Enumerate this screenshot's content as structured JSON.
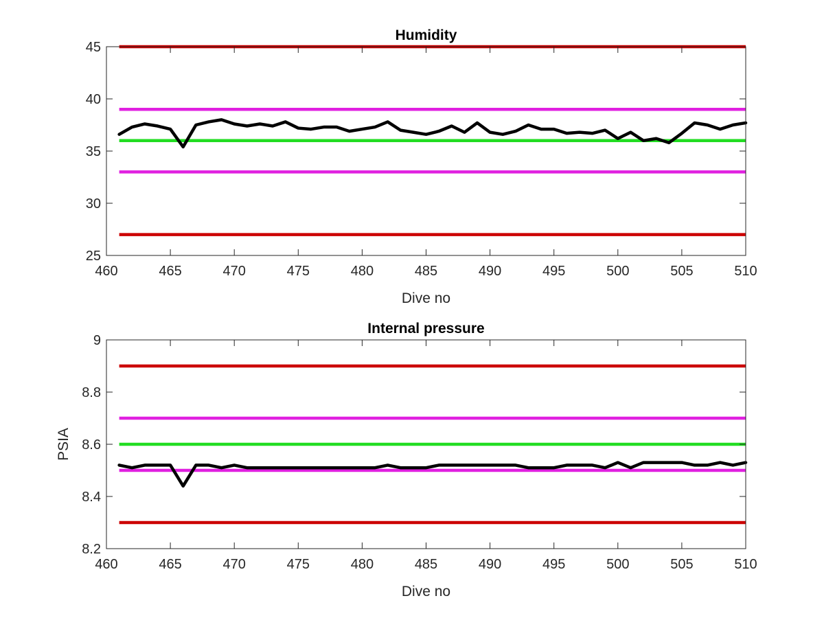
{
  "chart_data": [
    {
      "type": "line",
      "title": "Humidity",
      "xlabel": "Dive no",
      "ylabel": "",
      "xlim": [
        460,
        510
      ],
      "ylim": [
        25,
        45
      ],
      "xticks": [
        460,
        465,
        470,
        475,
        480,
        485,
        490,
        495,
        500,
        505,
        510
      ],
      "yticks": [
        25,
        30,
        35,
        40,
        45
      ],
      "grid": false,
      "reference_lines": [
        {
          "y": 45,
          "color": "#cc0000"
        },
        {
          "y": 39,
          "color": "#e020e0"
        },
        {
          "y": 36,
          "color": "#22dd22"
        },
        {
          "y": 33,
          "color": "#e020e0"
        },
        {
          "y": 27,
          "color": "#cc0000"
        }
      ],
      "series": [
        {
          "color": "#000000",
          "x": [
            461,
            462,
            463,
            464,
            465,
            466,
            467,
            468,
            469,
            470,
            471,
            472,
            473,
            474,
            475,
            476,
            477,
            478,
            479,
            480,
            481,
            482,
            483,
            484,
            485,
            486,
            487,
            488,
            489,
            490,
            491,
            492,
            493,
            494,
            495,
            496,
            497,
            498,
            499,
            500,
            501,
            502,
            503,
            504,
            505,
            506,
            507,
            508,
            509,
            510
          ],
          "y": [
            36.6,
            37.3,
            37.6,
            37.4,
            37.1,
            35.4,
            37.5,
            37.8,
            38.0,
            37.6,
            37.4,
            37.6,
            37.4,
            37.8,
            37.2,
            37.1,
            37.3,
            37.3,
            36.9,
            37.1,
            37.3,
            37.8,
            37.0,
            36.8,
            36.6,
            36.9,
            37.4,
            36.8,
            37.7,
            36.8,
            36.6,
            36.9,
            37.5,
            37.1,
            37.1,
            36.7,
            36.8,
            36.7,
            37.0,
            36.2,
            36.8,
            36.0,
            36.2,
            35.8,
            36.7,
            37.7,
            37.5,
            37.1,
            37.5,
            37.7
          ]
        }
      ]
    },
    {
      "type": "line",
      "title": "Internal pressure",
      "xlabel": "Dive no",
      "ylabel": "PSIA",
      "xlim": [
        460,
        510
      ],
      "ylim": [
        8.2,
        9
      ],
      "xticks": [
        460,
        465,
        470,
        475,
        480,
        485,
        490,
        495,
        500,
        505,
        510
      ],
      "yticks": [
        "8.2",
        "8.4",
        "8.6",
        "8.8",
        "9"
      ],
      "grid": false,
      "reference_lines": [
        {
          "y": 8.9,
          "color": "#cc0000"
        },
        {
          "y": 8.7,
          "color": "#e020e0"
        },
        {
          "y": 8.6,
          "color": "#22dd22"
        },
        {
          "y": 8.5,
          "color": "#e020e0"
        },
        {
          "y": 8.3,
          "color": "#cc0000"
        }
      ],
      "series": [
        {
          "color": "#000000",
          "x": [
            461,
            462,
            463,
            464,
            465,
            466,
            467,
            468,
            469,
            470,
            471,
            472,
            473,
            474,
            475,
            476,
            477,
            478,
            479,
            480,
            481,
            482,
            483,
            484,
            485,
            486,
            487,
            488,
            489,
            490,
            491,
            492,
            493,
            494,
            495,
            496,
            497,
            498,
            499,
            500,
            501,
            502,
            503,
            504,
            505,
            506,
            507,
            508,
            509,
            510
          ],
          "y": [
            8.52,
            8.51,
            8.52,
            8.52,
            8.52,
            8.44,
            8.52,
            8.52,
            8.51,
            8.52,
            8.51,
            8.51,
            8.51,
            8.51,
            8.51,
            8.51,
            8.51,
            8.51,
            8.51,
            8.51,
            8.51,
            8.52,
            8.51,
            8.51,
            8.51,
            8.52,
            8.52,
            8.52,
            8.52,
            8.52,
            8.52,
            8.52,
            8.51,
            8.51,
            8.51,
            8.52,
            8.52,
            8.52,
            8.51,
            8.53,
            8.51,
            8.53,
            8.53,
            8.53,
            8.53,
            8.52,
            8.52,
            8.53,
            8.52,
            8.53
          ]
        }
      ]
    }
  ]
}
